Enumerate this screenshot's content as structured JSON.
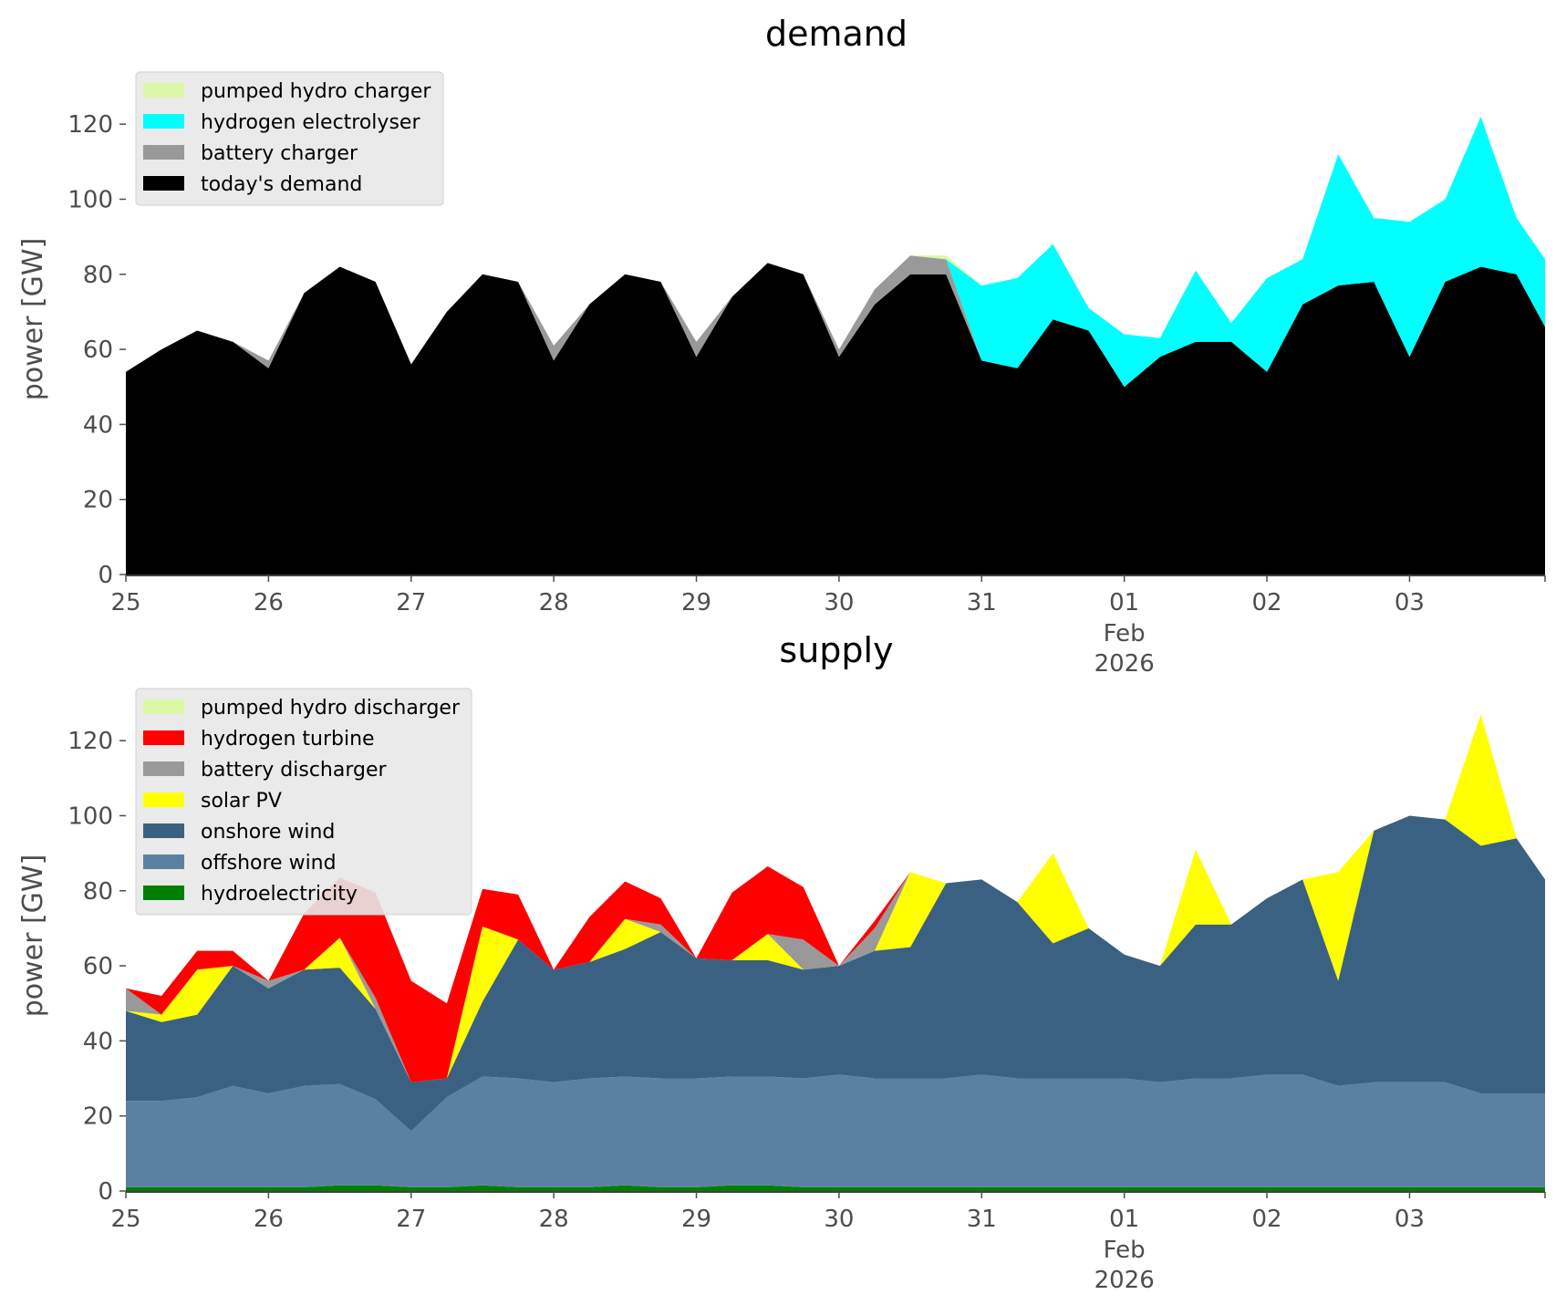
{
  "chart_data": [
    {
      "type": "area",
      "stacked": true,
      "title": "demand",
      "xlabel": "",
      "ylabel": "power [GW]",
      "ylim": [
        0,
        130
      ],
      "yticks": [
        "0",
        "20",
        "40",
        "60",
        "80",
        "100",
        "120"
      ],
      "x_range_days": [
        0,
        9.95
      ],
      "x_ticks": [
        {
          "day": 0,
          "label": "25"
        },
        {
          "day": 1,
          "label": "26"
        },
        {
          "day": 2,
          "label": "27"
        },
        {
          "day": 3,
          "label": "28"
        },
        {
          "day": 4,
          "label": "29"
        },
        {
          "day": 5,
          "label": "30"
        },
        {
          "day": 6,
          "label": "31"
        },
        {
          "day": 7,
          "label": "01"
        },
        {
          "day": 8,
          "label": "02"
        },
        {
          "day": 9,
          "label": "03"
        }
      ],
      "x_sub_labels": [
        "Feb",
        "2026"
      ],
      "legend_position": "upper-left",
      "x": [
        0,
        0.25,
        0.5,
        0.75,
        1,
        1.25,
        1.5,
        1.75,
        2,
        2.25,
        2.5,
        2.75,
        3,
        3.25,
        3.5,
        3.75,
        4,
        4.25,
        4.5,
        4.75,
        5,
        5.25,
        5.5,
        5.75,
        6,
        6.25,
        6.5,
        6.75,
        7,
        7.25,
        7.5,
        7.75,
        8,
        8.25,
        8.5,
        8.75,
        9,
        9.25,
        9.5,
        9.75,
        9.95
      ],
      "series": [
        {
          "name": "today's demand",
          "color": "#000000",
          "values": [
            54,
            60,
            65,
            62,
            55,
            75,
            82,
            78,
            56,
            70,
            80,
            78,
            57,
            72,
            80,
            78,
            58,
            74,
            83,
            80,
            58,
            72,
            80,
            80,
            57,
            55,
            68,
            65,
            50,
            58,
            62,
            62,
            54,
            72,
            77,
            78,
            58,
            78,
            82,
            80,
            66
          ]
        },
        {
          "name": "battery charger",
          "color": "#999999",
          "values": [
            0,
            0,
            0,
            0,
            2,
            0,
            0,
            0,
            0,
            0,
            0,
            0,
            4,
            0,
            0,
            0,
            4,
            0,
            0,
            0,
            2,
            4,
            5,
            4,
            0,
            0,
            0,
            0,
            0,
            0,
            0,
            0,
            0,
            0,
            0,
            0,
            0,
            0,
            0,
            0,
            0
          ]
        },
        {
          "name": "hydrogen electrolyser",
          "color": "#00ffff",
          "values": [
            0,
            0,
            0,
            0,
            0,
            0,
            0,
            0,
            0,
            0,
            0,
            0,
            0,
            0,
            0,
            0,
            0,
            0,
            0,
            0,
            0,
            0,
            0,
            0,
            20,
            24,
            20,
            6,
            14,
            5,
            19,
            5,
            25,
            12,
            35,
            17,
            36,
            22,
            40,
            15,
            18
          ]
        },
        {
          "name": "pumped hydro charger",
          "color": "#dcf7a6",
          "values": [
            0,
            0,
            0,
            0,
            0,
            0,
            0,
            0,
            0,
            0,
            0,
            0,
            0,
            0,
            0,
            0,
            0,
            0,
            0,
            0,
            0,
            0,
            0,
            1,
            0,
            0,
            0,
            0,
            0,
            0,
            0,
            0,
            0,
            0,
            0,
            0,
            0,
            0,
            0,
            0,
            0
          ]
        }
      ]
    },
    {
      "type": "area",
      "stacked": true,
      "title": "supply",
      "xlabel": "",
      "ylabel": "power [GW]",
      "ylim": [
        0,
        130
      ],
      "yticks": [
        "0",
        "20",
        "40",
        "60",
        "80",
        "100",
        "120"
      ],
      "x_range_days": [
        0,
        9.95
      ],
      "x_ticks": [
        {
          "day": 0,
          "label": "25"
        },
        {
          "day": 1,
          "label": "26"
        },
        {
          "day": 2,
          "label": "27"
        },
        {
          "day": 3,
          "label": "28"
        },
        {
          "day": 4,
          "label": "29"
        },
        {
          "day": 5,
          "label": "30"
        },
        {
          "day": 6,
          "label": "31"
        },
        {
          "day": 7,
          "label": "01"
        },
        {
          "day": 8,
          "label": "02"
        },
        {
          "day": 9,
          "label": "03"
        }
      ],
      "x_sub_labels": [
        "Feb",
        "2026"
      ],
      "legend_position": "upper-left",
      "x": [
        0,
        0.25,
        0.5,
        0.75,
        1,
        1.25,
        1.5,
        1.75,
        2,
        2.25,
        2.5,
        2.75,
        3,
        3.25,
        3.5,
        3.75,
        4,
        4.25,
        4.5,
        4.75,
        5,
        5.25,
        5.5,
        5.75,
        6,
        6.25,
        6.5,
        6.75,
        7,
        7.25,
        7.5,
        7.75,
        8,
        8.25,
        8.5,
        8.75,
        9,
        9.25,
        9.5,
        9.75,
        9.95
      ],
      "series": [
        {
          "name": "hydroelectricity",
          "color": "#008000",
          "values": [
            1,
            1,
            1,
            1,
            1,
            1,
            1.5,
            1.5,
            1,
            1,
            1.5,
            1,
            1,
            1,
            1.5,
            1,
            1,
            1.5,
            1.5,
            1,
            1,
            1,
            1,
            1,
            1,
            1,
            1,
            1,
            1,
            1,
            1,
            1,
            1,
            1,
            1,
            1,
            1,
            1,
            1,
            1,
            1
          ]
        },
        {
          "name": "offshore wind",
          "color": "#5b81a2",
          "values": [
            23,
            23,
            24,
            27,
            25,
            27,
            27,
            23,
            15,
            24,
            29,
            29,
            28,
            29,
            29,
            29,
            29,
            29,
            29,
            29,
            30,
            29,
            29,
            29,
            30,
            29,
            29,
            29,
            29,
            28,
            29,
            29,
            30,
            30,
            27,
            28,
            28,
            28,
            25,
            25,
            25
          ]
        },
        {
          "name": "onshore wind",
          "color": "#3b6182",
          "values": [
            24,
            21,
            22,
            32,
            28,
            31,
            31,
            24,
            13,
            5,
            20,
            37,
            30,
            31,
            34,
            39,
            32,
            31,
            31,
            29,
            29,
            34,
            35,
            52,
            52,
            47,
            36,
            40,
            33,
            31,
            41,
            41,
            47,
            52,
            28,
            67,
            71,
            70,
            66,
            68,
            57
          ]
        },
        {
          "name": "solar PV",
          "color": "#ffff00",
          "values": [
            0,
            2,
            12,
            0,
            0,
            0,
            8,
            0,
            0,
            0,
            20,
            0,
            0,
            0,
            8,
            0,
            0,
            0,
            7,
            0,
            0,
            0,
            20,
            0,
            0,
            0,
            24,
            0,
            0,
            0,
            20,
            0,
            0,
            0,
            29,
            0,
            0,
            0,
            35,
            0,
            0
          ]
        },
        {
          "name": "battery discharger",
          "color": "#999999",
          "values": [
            6,
            0,
            0,
            0,
            2,
            0,
            0,
            3,
            0,
            0,
            0,
            0,
            0,
            0,
            0,
            2,
            0,
            0,
            0,
            8,
            0,
            6,
            0,
            0,
            0,
            0,
            0,
            0,
            0,
            0,
            0,
            0,
            0,
            0,
            0,
            0,
            0,
            0,
            0,
            0,
            0
          ]
        },
        {
          "name": "hydrogen turbine",
          "color": "#ff0000",
          "values": [
            0,
            5,
            5,
            4,
            0,
            15,
            16,
            28,
            27,
            20,
            10,
            12,
            0,
            12,
            10,
            7,
            0,
            18,
            18,
            14,
            0,
            2,
            0,
            0,
            0,
            0,
            0,
            0,
            0,
            0,
            0,
            0,
            0,
            0,
            0,
            0,
            0,
            0,
            0,
            0,
            0
          ]
        },
        {
          "name": "pumped hydro discharger",
          "color": "#dcf7a6",
          "values": [
            0,
            0,
            0,
            0,
            0,
            0,
            0,
            0,
            0,
            0,
            0,
            0,
            0,
            0,
            0,
            0,
            0,
            0,
            0,
            0,
            0,
            0,
            0,
            0,
            0,
            0,
            0,
            0,
            0,
            0,
            0,
            0,
            0,
            0,
            0,
            0,
            0,
            0,
            0,
            0,
            0
          ]
        }
      ]
    }
  ],
  "legends": [
    [
      "pumped hydro charger",
      "hydrogen electrolyser",
      "battery charger",
      "today's demand"
    ],
    [
      "pumped hydro discharger",
      "hydrogen turbine",
      "battery discharger",
      "solar PV",
      "onshore wind",
      "offshore wind",
      "hydroelectricity"
    ]
  ]
}
